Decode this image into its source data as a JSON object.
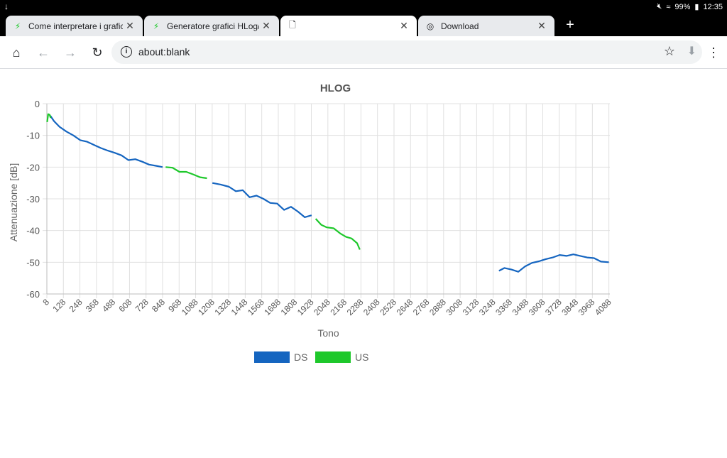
{
  "statusbar": {
    "battery": "99%",
    "time": "12:35"
  },
  "tabs": [
    {
      "label": "Come interpretare i grafici HLog",
      "icon": "bolt-icon"
    },
    {
      "label": "Generatore grafici HLog/QLN",
      "icon": "bolt-icon"
    },
    {
      "label": "",
      "icon": "blank-page-icon"
    },
    {
      "label": "Download",
      "icon": "chrome-icon"
    }
  ],
  "toolbar": {
    "url_scheme": "about:",
    "url_rest": "blank"
  },
  "chart_data": {
    "type": "line",
    "title": "HLOG",
    "xlabel": "Tono",
    "ylabel": "Attenuazione [dB]",
    "xlim": [
      8,
      4095
    ],
    "ylim": [
      -60,
      0
    ],
    "grid": true,
    "legend_position": "bottom",
    "x_ticks": [
      8,
      128,
      248,
      368,
      488,
      608,
      728,
      848,
      968,
      1088,
      1208,
      1328,
      1448,
      1568,
      1688,
      1808,
      1928,
      2048,
      2168,
      2288,
      2408,
      2528,
      2648,
      2768,
      2888,
      3008,
      3128,
      3248,
      3368,
      3488,
      3608,
      3728,
      3848,
      3968,
      4088
    ],
    "y_ticks": [
      0,
      -10,
      -20,
      -30,
      -40,
      -50,
      -60
    ],
    "colors": {
      "DS": "#1565c0",
      "US": "#1ec82b"
    },
    "series": [
      {
        "name": "DS",
        "segments": [
          [
            [
              33,
              -3.8
            ],
            [
              60,
              -5.5
            ],
            [
              100,
              -7.3
            ],
            [
              150,
              -8.8
            ],
            [
              200,
              -10
            ],
            [
              250,
              -11.5
            ],
            [
              300,
              -12
            ],
            [
              350,
              -13
            ],
            [
              400,
              -14
            ],
            [
              450,
              -14.8
            ],
            [
              500,
              -15.5
            ],
            [
              550,
              -16.3
            ],
            [
              600,
              -17.8
            ],
            [
              650,
              -17.5
            ],
            [
              700,
              -18.3
            ],
            [
              750,
              -19.2
            ],
            [
              800,
              -19.6
            ],
            [
              848,
              -20
            ]
          ],
          [
            [
              1210,
              -25
            ],
            [
              1270,
              -25.5
            ],
            [
              1330,
              -26.2
            ],
            [
              1380,
              -27.6
            ],
            [
              1430,
              -27.3
            ],
            [
              1480,
              -29.5
            ],
            [
              1530,
              -29
            ],
            [
              1580,
              -30
            ],
            [
              1630,
              -31.3
            ],
            [
              1680,
              -31.5
            ],
            [
              1730,
              -33.5
            ],
            [
              1780,
              -32.5
            ],
            [
              1830,
              -34
            ],
            [
              1880,
              -35.8
            ],
            [
              1930,
              -35.2
            ]
          ],
          [
            [
              3290,
              -52.7
            ],
            [
              3330,
              -51.8
            ],
            [
              3380,
              -52.3
            ],
            [
              3430,
              -53
            ],
            [
              3480,
              -51.3
            ],
            [
              3530,
              -50.2
            ],
            [
              3580,
              -49.7
            ],
            [
              3630,
              -49
            ],
            [
              3680,
              -48.5
            ],
            [
              3730,
              -47.7
            ],
            [
              3780,
              -48
            ],
            [
              3830,
              -47.5
            ],
            [
              3880,
              -48
            ],
            [
              3930,
              -48.5
            ],
            [
              3980,
              -48.7
            ],
            [
              4030,
              -49.8
            ],
            [
              4088,
              -50
            ]
          ]
        ]
      },
      {
        "name": "US",
        "segments": [
          [
            [
              10,
              -5.8
            ],
            [
              18,
              -3.3
            ],
            [
              28,
              -3.5
            ],
            [
              36,
              -4.5
            ]
          ],
          [
            [
              870,
              -20
            ],
            [
              920,
              -20.2
            ],
            [
              970,
              -21.5
            ],
            [
              1020,
              -21.5
            ],
            [
              1070,
              -22.3
            ],
            [
              1120,
              -23.2
            ],
            [
              1170,
              -23.5
            ]
          ],
          [
            [
              1960,
              -36.3
            ],
            [
              2000,
              -38.2
            ],
            [
              2040,
              -39
            ],
            [
              2090,
              -39.3
            ],
            [
              2140,
              -41
            ],
            [
              2180,
              -42
            ],
            [
              2220,
              -42.5
            ],
            [
              2260,
              -44
            ],
            [
              2280,
              -46
            ]
          ]
        ]
      }
    ]
  }
}
